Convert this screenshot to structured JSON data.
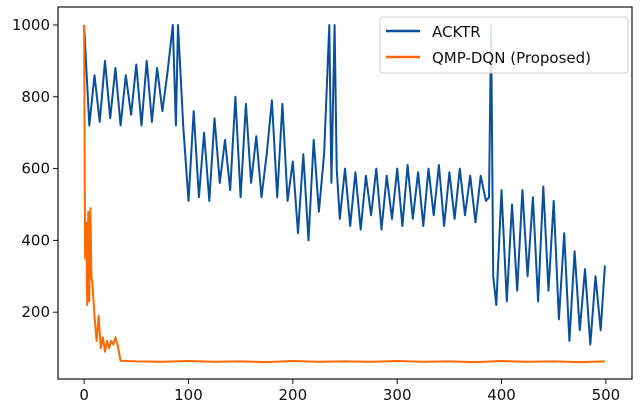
{
  "chart_data": {
    "type": "line",
    "title": "",
    "xlabel": "",
    "ylabel": "",
    "xlim": [
      -25,
      525
    ],
    "ylim": [
      14,
      1050
    ],
    "xticks": [
      0,
      100,
      200,
      300,
      400,
      500
    ],
    "yticks": [
      200,
      400,
      600,
      800,
      1000
    ],
    "grid": false,
    "legend_placement": "top-right",
    "series": [
      {
        "name": "ACKTR",
        "color": "#0a4f9c",
        "x": [
          0,
          5,
          10,
          15,
          20,
          25,
          30,
          35,
          40,
          45,
          50,
          55,
          60,
          65,
          70,
          75,
          80,
          85,
          88,
          90,
          95,
          100,
          105,
          110,
          115,
          120,
          125,
          130,
          135,
          140,
          145,
          150,
          155,
          160,
          165,
          170,
          175,
          180,
          185,
          190,
          195,
          200,
          205,
          210,
          215,
          220,
          225,
          230,
          235,
          237,
          240,
          242,
          245,
          250,
          255,
          260,
          265,
          270,
          275,
          280,
          285,
          290,
          295,
          300,
          305,
          310,
          315,
          320,
          325,
          330,
          335,
          340,
          345,
          350,
          355,
          360,
          365,
          370,
          375,
          380,
          385,
          388,
          390,
          392,
          395,
          400,
          405,
          410,
          415,
          420,
          425,
          430,
          435,
          440,
          445,
          450,
          455,
          460,
          465,
          470,
          475,
          480,
          485,
          490,
          495,
          499
        ],
        "y": [
          1000,
          720,
          860,
          730,
          900,
          740,
          880,
          720,
          860,
          750,
          890,
          720,
          900,
          730,
          880,
          760,
          870,
          1000,
          720,
          1000,
          720,
          510,
          760,
          520,
          700,
          510,
          740,
          560,
          680,
          540,
          800,
          520,
          780,
          560,
          690,
          520,
          640,
          790,
          520,
          780,
          510,
          620,
          420,
          640,
          400,
          680,
          480,
          640,
          1000,
          560,
          1000,
          600,
          460,
          600,
          440,
          590,
          430,
          580,
          470,
          600,
          430,
          580,
          460,
          600,
          440,
          610,
          460,
          590,
          440,
          600,
          470,
          610,
          440,
          590,
          460,
          600,
          470,
          580,
          450,
          580,
          510,
          520,
          1000,
          300,
          220,
          540,
          230,
          500,
          260,
          540,
          300,
          520,
          230,
          550,
          260,
          510,
          180,
          420,
          120,
          370,
          150,
          320,
          110,
          300,
          150,
          330
        ]
      },
      {
        "name": "QMP-DQN (Proposed)",
        "color": "#ff6a00",
        "x": [
          0,
          1,
          2,
          3,
          4,
          5,
          6,
          7,
          8,
          10,
          12,
          14,
          16,
          18,
          20,
          22,
          24,
          26,
          28,
          30,
          32,
          35,
          50,
          75,
          100,
          125,
          150,
          175,
          200,
          225,
          250,
          275,
          300,
          325,
          350,
          375,
          400,
          425,
          450,
          475,
          499
        ],
        "y": [
          1000,
          350,
          450,
          220,
          480,
          230,
          490,
          300,
          280,
          190,
          120,
          190,
          100,
          130,
          90,
          120,
          100,
          120,
          110,
          130,
          110,
          65,
          63,
          62,
          64,
          62,
          63,
          61,
          64,
          62,
          63,
          62,
          64,
          62,
          63,
          61,
          64,
          62,
          63,
          61,
          63
        ]
      }
    ]
  }
}
